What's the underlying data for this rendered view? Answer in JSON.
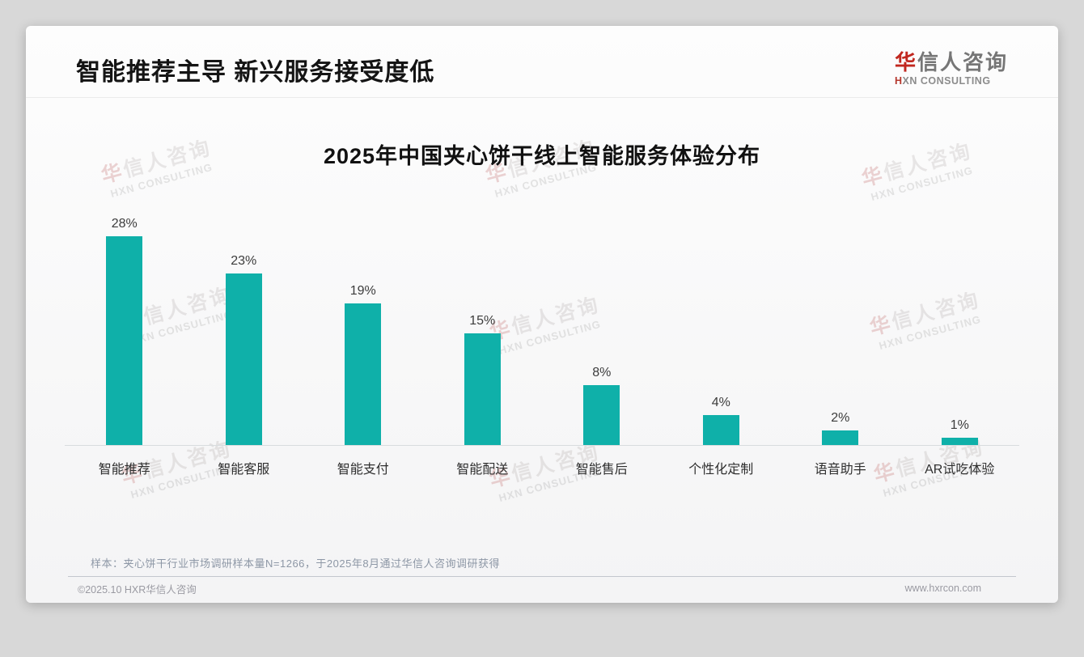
{
  "header": {
    "title": "智能推荐主导 新兴服务接受度低"
  },
  "logo": {
    "cn_first": "华",
    "cn_rest": "信人咨询",
    "en_first": "H",
    "en_rest": "XN CONSULTING"
  },
  "watermark": {
    "cn_first": "华",
    "cn_rest": "信人咨询",
    "en": "HXN CONSULTING"
  },
  "chart_data": {
    "type": "bar",
    "title": "2025年中国夹心饼干线上智能服务体验分布",
    "categories": [
      "智能推荐",
      "智能客服",
      "智能支付",
      "智能配送",
      "智能售后",
      "个性化定制",
      "语音助手",
      "AR试吃体验"
    ],
    "values": [
      28,
      23,
      19,
      15,
      8,
      4,
      2,
      1
    ],
    "unit": "%",
    "value_labels": [
      "28%",
      "23%",
      "19%",
      "15%",
      "8%",
      "4%",
      "2%",
      "1%"
    ],
    "bar_color": "#0fb0a9",
    "xlabel": "",
    "ylabel": "",
    "ylim": [
      0,
      30
    ],
    "grid": false,
    "legend": false,
    "value_labels_position": "above-bars"
  },
  "note": "样本：夹心饼干行业市场调研样本量N=1266，于2025年8月通过华信人咨询调研获得",
  "footer": {
    "copyright": "©2025.10 HXR华信人咨询",
    "website": "www.hxrcon.com"
  }
}
